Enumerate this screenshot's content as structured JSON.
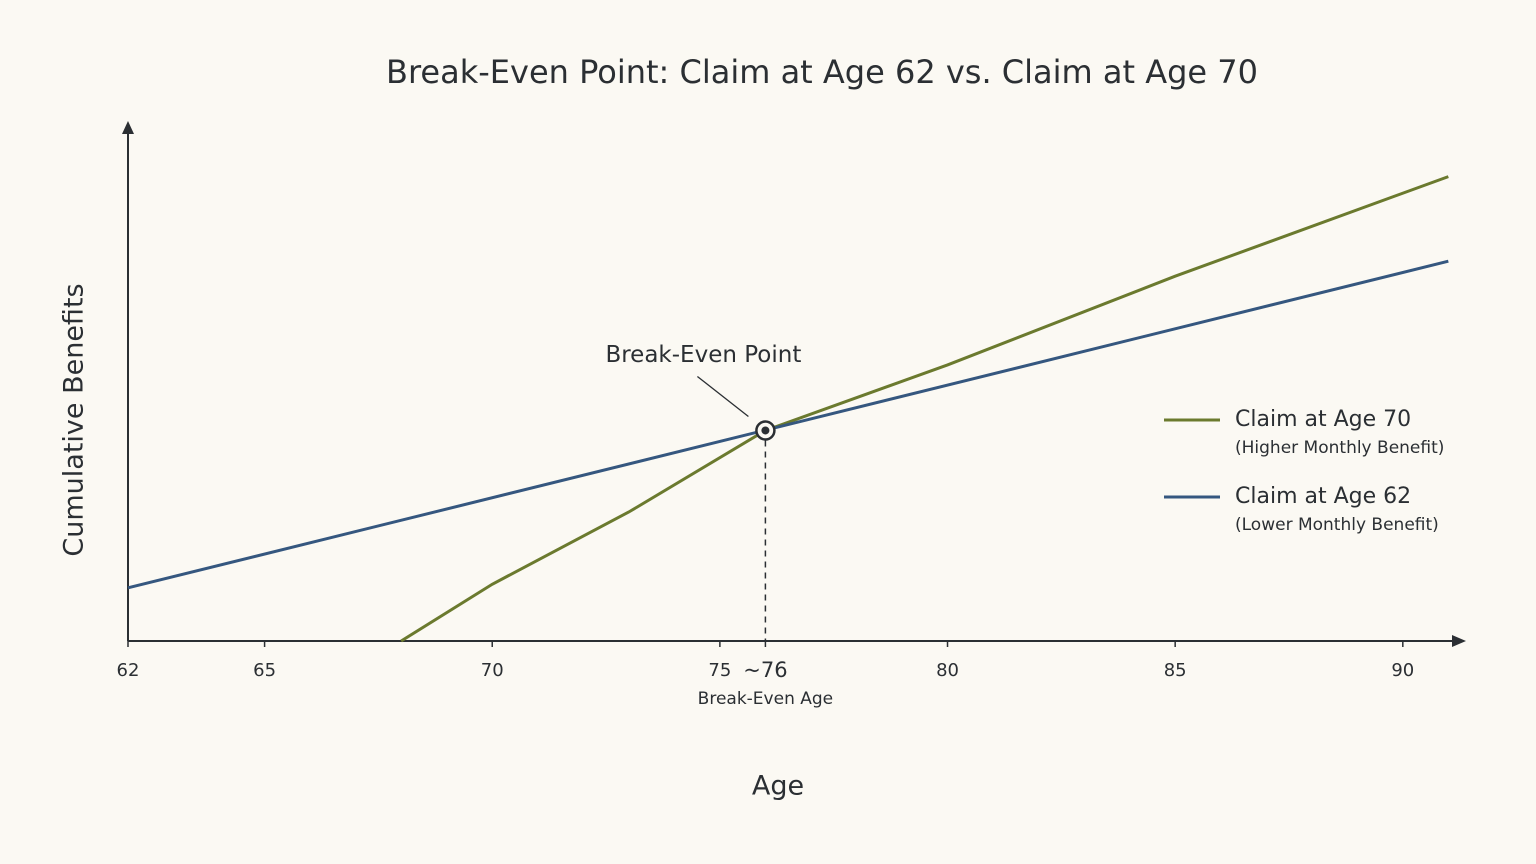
{
  "chart_data": {
    "type": "line",
    "title": "Break-Even Point: Claim at Age 62 vs. Claim at Age 70",
    "x_label": "Age",
    "y_label": "Cumulative Benefits",
    "xlim": [
      62,
      91.3
    ],
    "ylim": [
      0,
      100
    ],
    "xticks": [
      62,
      65,
      70,
      75,
      {
        "value": 76,
        "label": "~76"
      },
      80,
      85,
      90
    ],
    "series": [
      {
        "name": "Claim at Age 70",
        "description": "(Higher Monthly Benefit)",
        "color": "#6b7a2e",
        "x": [
          68,
          70,
          73,
          76,
          80,
          85,
          91
        ],
        "values": [
          0,
          11,
          25,
          40.8,
          53.5,
          70.7,
          90
        ]
      },
      {
        "name": "Claim at Age 62",
        "description": "(Lower Monthly Benefit)",
        "color": "#35577f",
        "x": [
          62,
          91
        ],
        "values": [
          10.3,
          73.6
        ]
      }
    ],
    "break_even": {
      "label": "Break-Even Point",
      "axis_label": "Break-Even Age",
      "x": 76,
      "y": 40.8
    },
    "legend": "right",
    "grid": false
  }
}
